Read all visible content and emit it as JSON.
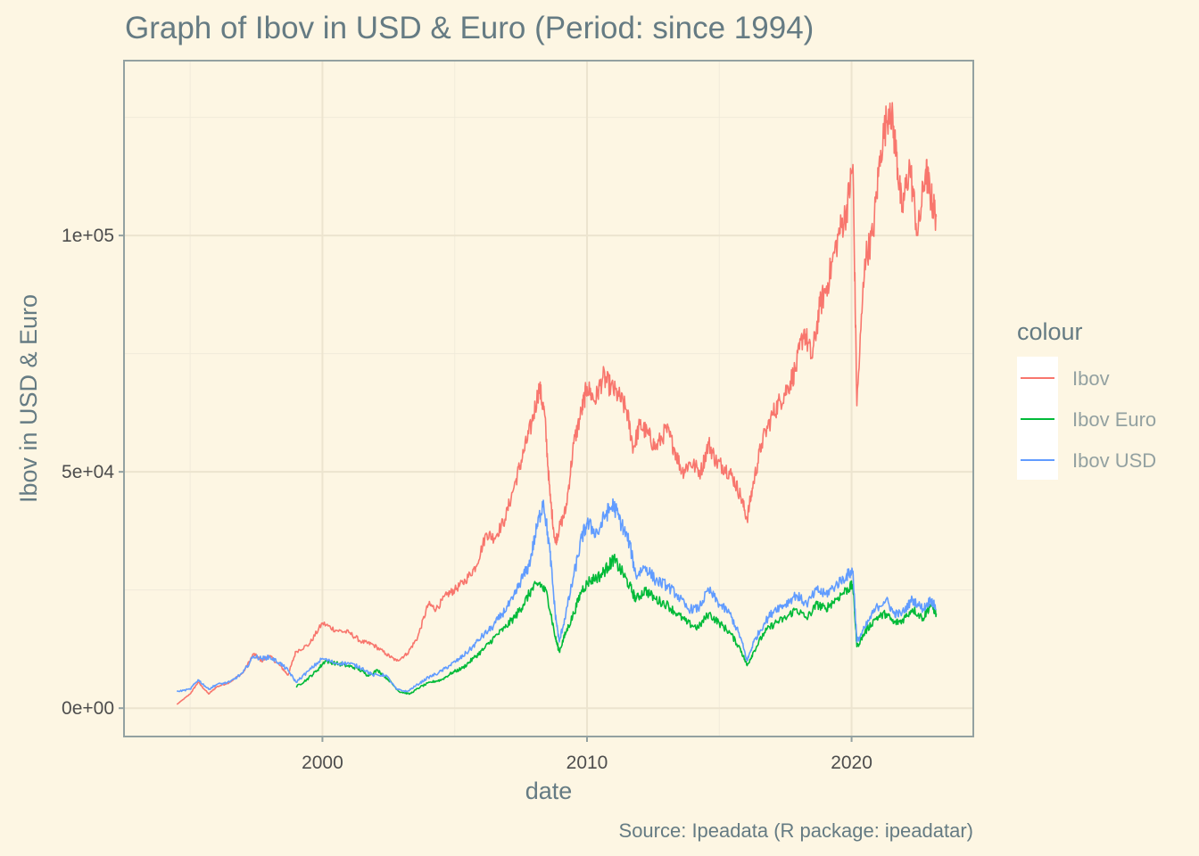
{
  "chart_data": {
    "type": "line",
    "title": "Graph of Ibov in USD & Euro (Period: since 1994)",
    "xlabel": "date",
    "ylabel": "Ibov in USD & Euro",
    "caption": "Source: Ipeadata (R package: ipeadatar)",
    "xlim": [
      1992.5,
      2024.6
    ],
    "ylim": [
      -6000,
      137000
    ],
    "x_ticks": [
      2000,
      2010,
      2020
    ],
    "x_tick_labels": [
      "2000",
      "2010",
      "2020"
    ],
    "y_ticks": [
      0,
      50000,
      100000
    ],
    "y_tick_labels": [
      "0e+00",
      "5e+04",
      "1e+05"
    ],
    "grid": true,
    "legend": {
      "title": "colour",
      "position": "right"
    },
    "series": [
      {
        "name": "Ibov",
        "color": "#f8766d",
        "x": [
          1994.5,
          1995.0,
          1995.3,
          1995.7,
          1996.0,
          1996.5,
          1997.0,
          1997.4,
          1997.7,
          1998.0,
          1998.4,
          1998.7,
          1999.0,
          1999.5,
          2000.0,
          2000.5,
          2001.0,
          2001.5,
          2001.9,
          2002.4,
          2002.8,
          2003.2,
          2003.6,
          2004.0,
          2004.3,
          2004.7,
          2005.0,
          2005.4,
          2005.8,
          2006.2,
          2006.5,
          2006.9,
          2007.3,
          2007.6,
          2007.9,
          2008.2,
          2008.4,
          2008.6,
          2008.8,
          2008.95,
          2009.2,
          2009.5,
          2009.8,
          2010.0,
          2010.3,
          2010.6,
          2010.9,
          2011.2,
          2011.5,
          2011.75,
          2012.0,
          2012.3,
          2012.6,
          2013.0,
          2013.3,
          2013.6,
          2013.9,
          2014.3,
          2014.6,
          2014.9,
          2015.2,
          2015.5,
          2015.8,
          2016.05,
          2016.3,
          2016.6,
          2017.0,
          2017.3,
          2017.6,
          2017.9,
          2018.2,
          2018.5,
          2018.8,
          2019.1,
          2019.5,
          2019.8,
          2020.05,
          2020.2,
          2020.5,
          2020.8,
          2021.1,
          2021.45,
          2021.7,
          2021.9,
          2022.2,
          2022.5,
          2022.8,
          2023.0,
          2023.2
        ],
        "values": [
          800,
          3000,
          5500,
          3000,
          4500,
          5500,
          7500,
          11500,
          10000,
          11000,
          9000,
          7000,
          12000,
          13500,
          18000,
          16500,
          16000,
          14000,
          13500,
          11500,
          10000,
          11500,
          15000,
          22000,
          21000,
          24000,
          25000,
          27000,
          30000,
          37000,
          36000,
          40000,
          48000,
          54000,
          60000,
          68000,
          62000,
          45000,
          35000,
          38000,
          42000,
          56000,
          63000,
          68000,
          65000,
          70000,
          68000,
          66000,
          63000,
          55000,
          60000,
          58000,
          55000,
          59000,
          55000,
          50000,
          52000,
          50000,
          56000,
          52000,
          51000,
          49000,
          45000,
          40000,
          48000,
          56000,
          62000,
          65000,
          68000,
          72000,
          80000,
          74000,
          85000,
          90000,
          100000,
          105000,
          115000,
          64000,
          95000,
          100000,
          118000,
          128000,
          117000,
          105000,
          115000,
          100000,
          114000,
          108000,
          104000
        ]
      },
      {
        "name": "Ibov Euro",
        "color": "#00ba38",
        "x": [
          1999.0,
          1999.4,
          1999.8,
          2000.1,
          2000.5,
          2000.9,
          2001.3,
          2001.7,
          2002.1,
          2002.5,
          2002.9,
          2003.3,
          2003.7,
          2004.1,
          2004.5,
          2004.9,
          2005.3,
          2005.7,
          2006.1,
          2006.5,
          2006.9,
          2007.3,
          2007.6,
          2007.9,
          2008.2,
          2008.5,
          2008.8,
          2008.95,
          2009.2,
          2009.5,
          2009.8,
          2010.1,
          2010.5,
          2010.8,
          2011.0,
          2011.3,
          2011.6,
          2011.85,
          2012.2,
          2012.6,
          2013.0,
          2013.4,
          2013.8,
          2014.2,
          2014.6,
          2015.0,
          2015.4,
          2015.8,
          2016.05,
          2016.3,
          2016.7,
          2017.1,
          2017.5,
          2017.9,
          2018.3,
          2018.7,
          2019.0,
          2019.4,
          2019.8,
          2020.05,
          2020.2,
          2020.5,
          2020.9,
          2021.3,
          2021.6,
          2021.9,
          2022.3,
          2022.7,
          2023.0,
          2023.2
        ],
        "values": [
          4500,
          6000,
          8000,
          10000,
          9500,
          9000,
          8500,
          7000,
          8000,
          6000,
          3500,
          3000,
          4500,
          5500,
          6000,
          7500,
          8500,
          10500,
          12500,
          15000,
          17000,
          19500,
          22000,
          25000,
          26500,
          24000,
          15000,
          12000,
          16000,
          20000,
          25000,
          27000,
          28000,
          30000,
          31500,
          29000,
          26000,
          23000,
          25000,
          23000,
          22000,
          20000,
          18000,
          17000,
          20000,
          18000,
          16000,
          12500,
          9000,
          12000,
          16000,
          18000,
          19000,
          21000,
          19000,
          22000,
          21000,
          23000,
          25000,
          26000,
          13000,
          16000,
          19000,
          20000,
          18000,
          18500,
          21000,
          19000,
          22000,
          20000
        ]
      },
      {
        "name": "Ibov USD",
        "color": "#619cff",
        "x": [
          1994.5,
          1995.0,
          1995.3,
          1995.7,
          1996.0,
          1996.5,
          1997.0,
          1997.4,
          1997.7,
          1998.0,
          1998.4,
          1998.7,
          1999.0,
          1999.5,
          2000.0,
          2000.5,
          2001.0,
          2001.5,
          2001.9,
          2002.4,
          2002.8,
          2003.2,
          2003.6,
          2004.0,
          2004.4,
          2004.8,
          2005.2,
          2005.6,
          2006.0,
          2006.4,
          2006.8,
          2007.2,
          2007.5,
          2007.8,
          2008.1,
          2008.35,
          2008.6,
          2008.8,
          2008.95,
          2009.2,
          2009.5,
          2009.8,
          2010.0,
          2010.4,
          2010.7,
          2011.0,
          2011.3,
          2011.6,
          2011.85,
          2012.2,
          2012.6,
          2013.0,
          2013.4,
          2013.8,
          2014.2,
          2014.6,
          2015.0,
          2015.4,
          2015.8,
          2016.05,
          2016.3,
          2016.7,
          2017.1,
          2017.5,
          2017.9,
          2018.3,
          2018.7,
          2019.0,
          2019.4,
          2019.8,
          2020.05,
          2020.2,
          2020.5,
          2020.9,
          2021.3,
          2021.6,
          2021.9,
          2022.3,
          2022.7,
          2023.0,
          2023.2
        ],
        "values": [
          3500,
          4000,
          6000,
          4000,
          5000,
          5500,
          7500,
          11000,
          10500,
          10800,
          9500,
          8000,
          5500,
          8000,
          10500,
          9500,
          9500,
          8500,
          7000,
          7000,
          4000,
          3500,
          5000,
          6500,
          7500,
          9000,
          10500,
          12500,
          15000,
          17000,
          20000,
          23000,
          27000,
          30000,
          38000,
          44000,
          33000,
          20000,
          14000,
          20000,
          28000,
          36000,
          39000,
          37000,
          41000,
          43000,
          39000,
          35000,
          28000,
          30000,
          27000,
          26000,
          24000,
          21000,
          21000,
          25000,
          22000,
          20000,
          15000,
          10000,
          14000,
          18000,
          21000,
          22000,
          24000,
          22000,
          25000,
          24000,
          26000,
          28000,
          29000,
          14000,
          17000,
          21000,
          23000,
          20000,
          20000,
          23000,
          21000,
          23000,
          21000
        ]
      }
    ]
  }
}
